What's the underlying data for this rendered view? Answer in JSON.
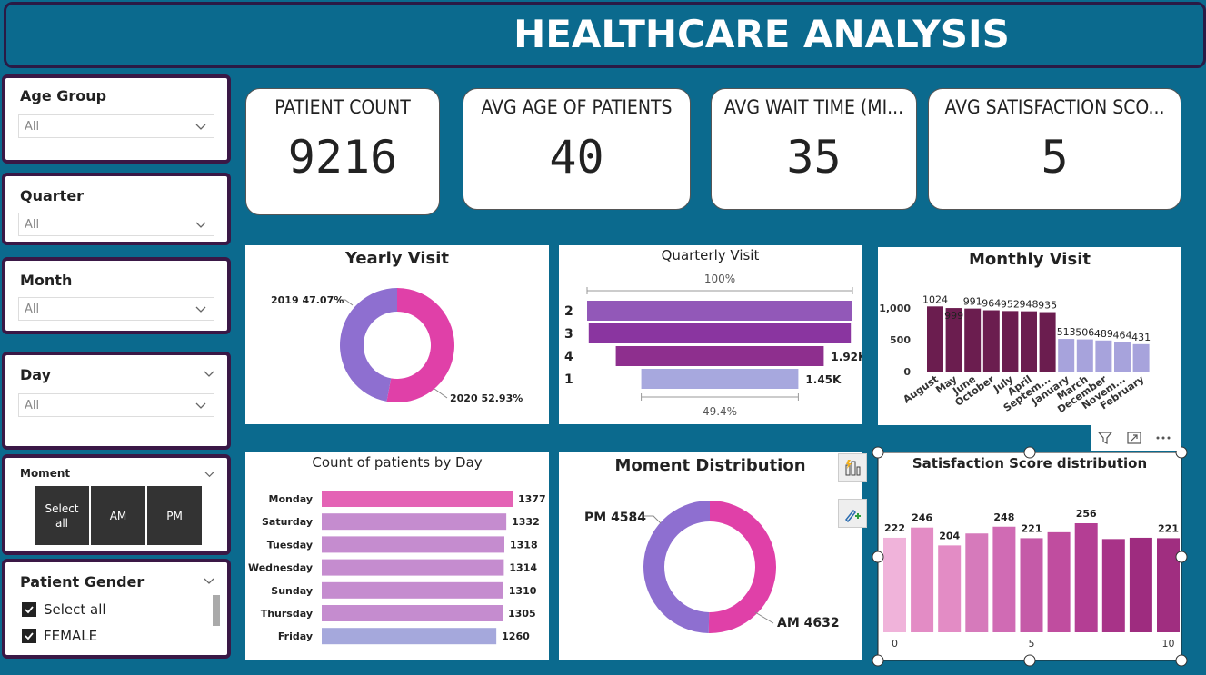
{
  "header": {
    "title": "HEALTHCARE ANALYSIS"
  },
  "slicers": {
    "age_group": {
      "title": "Age Group",
      "value": "All"
    },
    "quarter": {
      "title": "Quarter",
      "value": "All"
    },
    "month": {
      "title": "Month",
      "value": "All"
    },
    "day": {
      "title": "Day",
      "value": "All"
    },
    "moment": {
      "title": "Moment",
      "select_all": "Select all",
      "am": "AM",
      "pm": "PM"
    },
    "gender": {
      "title": "Patient Gender",
      "options": [
        "Select all",
        "FEMALE"
      ]
    }
  },
  "kpis": [
    {
      "title": "PATIENT COUNT",
      "value": "9216"
    },
    {
      "title": "AVG AGE OF PATIENTS",
      "value": "40"
    },
    {
      "title": "AVG WAIT TIME (MI...",
      "value": "35"
    },
    {
      "title": "AVG SATISFACTION SCO...",
      "value": "5"
    }
  ],
  "chart_data": [
    {
      "type": "pie",
      "title": "Yearly Visit",
      "labels": [
        "2019 47.07%",
        "2020 52.93%"
      ],
      "categories": [
        "2019",
        "2020"
      ],
      "values": [
        47.07,
        52.93
      ],
      "colors": [
        "#8e6fd0",
        "#e040a8"
      ]
    },
    {
      "type": "bar",
      "title": "Quarterly Visit",
      "categories": [
        "2",
        "3",
        "4",
        "1"
      ],
      "values": [
        2.45,
        2.42,
        1.92,
        1.45
      ],
      "data_labels": [
        "",
        "",
        "1.92K",
        "1.45K"
      ],
      "top_label": "100%",
      "bottom_label": "49.4%",
      "colors": [
        "#9258b8",
        "#8a35a0",
        "#8e2f8e",
        "#a7a8de"
      ]
    },
    {
      "type": "bar",
      "title": "Monthly Visit",
      "categories": [
        "August",
        "May",
        "June",
        "October",
        "July",
        "April",
        "Septem...",
        "January",
        "March",
        "December",
        "Novem...",
        "February"
      ],
      "values": [
        1024,
        999,
        991,
        964,
        952,
        948,
        935,
        513,
        506,
        489,
        464,
        431
      ],
      "yticks": [
        "1,000",
        "500",
        "0"
      ],
      "ylim": [
        0,
        1100
      ],
      "colors": [
        "#6b1d4f",
        "#a7a3dc"
      ]
    },
    {
      "type": "bar",
      "title": "Count of patients by Day",
      "categories": [
        "Monday",
        "Saturday",
        "Tuesday",
        "Wednesday",
        "Sunday",
        "Thursday",
        "Friday"
      ],
      "values": [
        1377,
        1332,
        1318,
        1314,
        1310,
        1305,
        1260
      ],
      "colors": [
        "#e463b5",
        "#c58ccf",
        "#c58ccf",
        "#c58ccf",
        "#c58ccf",
        "#c58ccf",
        "#a5a8dc"
      ]
    },
    {
      "type": "pie",
      "title": "Moment Distribution",
      "labels": [
        "PM 4584",
        "AM 4632"
      ],
      "categories": [
        "PM",
        "AM"
      ],
      "values": [
        4584,
        4632
      ],
      "colors": [
        "#8e6fd0",
        "#e040a8"
      ]
    },
    {
      "type": "bar",
      "title": "Satisfaction Score distribution",
      "categories": [
        "0",
        "1",
        "2",
        "3",
        "4",
        "5",
        "6",
        "7",
        "8",
        "9",
        "10"
      ],
      "values": [
        222,
        246,
        204,
        232,
        248,
        221,
        235,
        256,
        219,
        222,
        221
      ],
      "data_labels": [
        "222",
        "246",
        "204",
        "",
        "248",
        "221",
        "",
        "256",
        "",
        "",
        "221"
      ],
      "xticks": [
        "0",
        "5",
        "10"
      ],
      "colors": [
        "#f0b3da",
        "#e38cc5",
        "#e38cc5",
        "#d67abb",
        "#d06bb4",
        "#c55aa8",
        "#c04d9f",
        "#b43e94",
        "#a83388",
        "#9e2c7f",
        "#a02e80"
      ]
    }
  ],
  "toolbar_icons": [
    "filter-icon",
    "focus-mode-icon",
    "more-options-icon"
  ],
  "side_tools": [
    "analytics-icon",
    "format-paint-icon"
  ]
}
